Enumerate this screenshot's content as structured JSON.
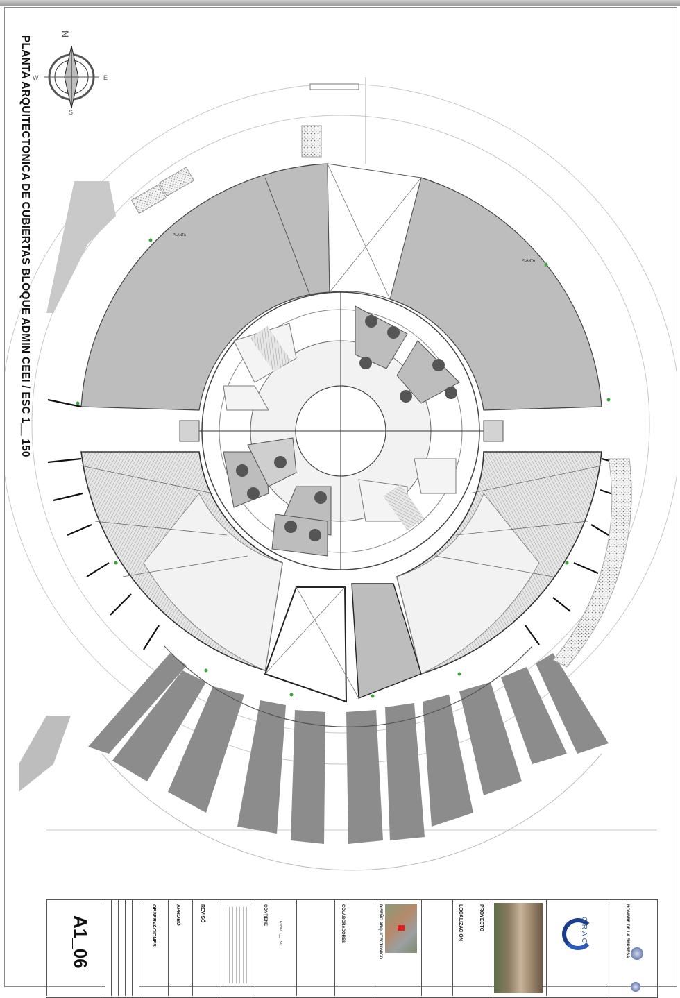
{
  "drawing": {
    "title": "PLANTA ARQUITECTONICA DE CUBIERTAS  BLOQUE ADMIN CEEI / ESC 1__ 150",
    "compass": {
      "north": "N",
      "south": "S",
      "east": "E",
      "west": "W"
    },
    "slope_tag": "PLANTA"
  },
  "title_block": {
    "sheet_number": "A1_06",
    "observaciones": "OBSERVACIONES",
    "aprobo": "APROBÓ",
    "reviso": "REVISÓ",
    "contiene": "CONTIENE",
    "colaboradores": "COLABORADORES",
    "diseno": "DISEÑO ARQUITECTONICO",
    "localizacion": "LOCALIZACIÓN",
    "proyecto": "PROYECTO",
    "nombre_empresa": "NOMBRE DE LA EMPRESA",
    "logo_text": "GRACA",
    "escala": "Escala 1__ 150"
  }
}
